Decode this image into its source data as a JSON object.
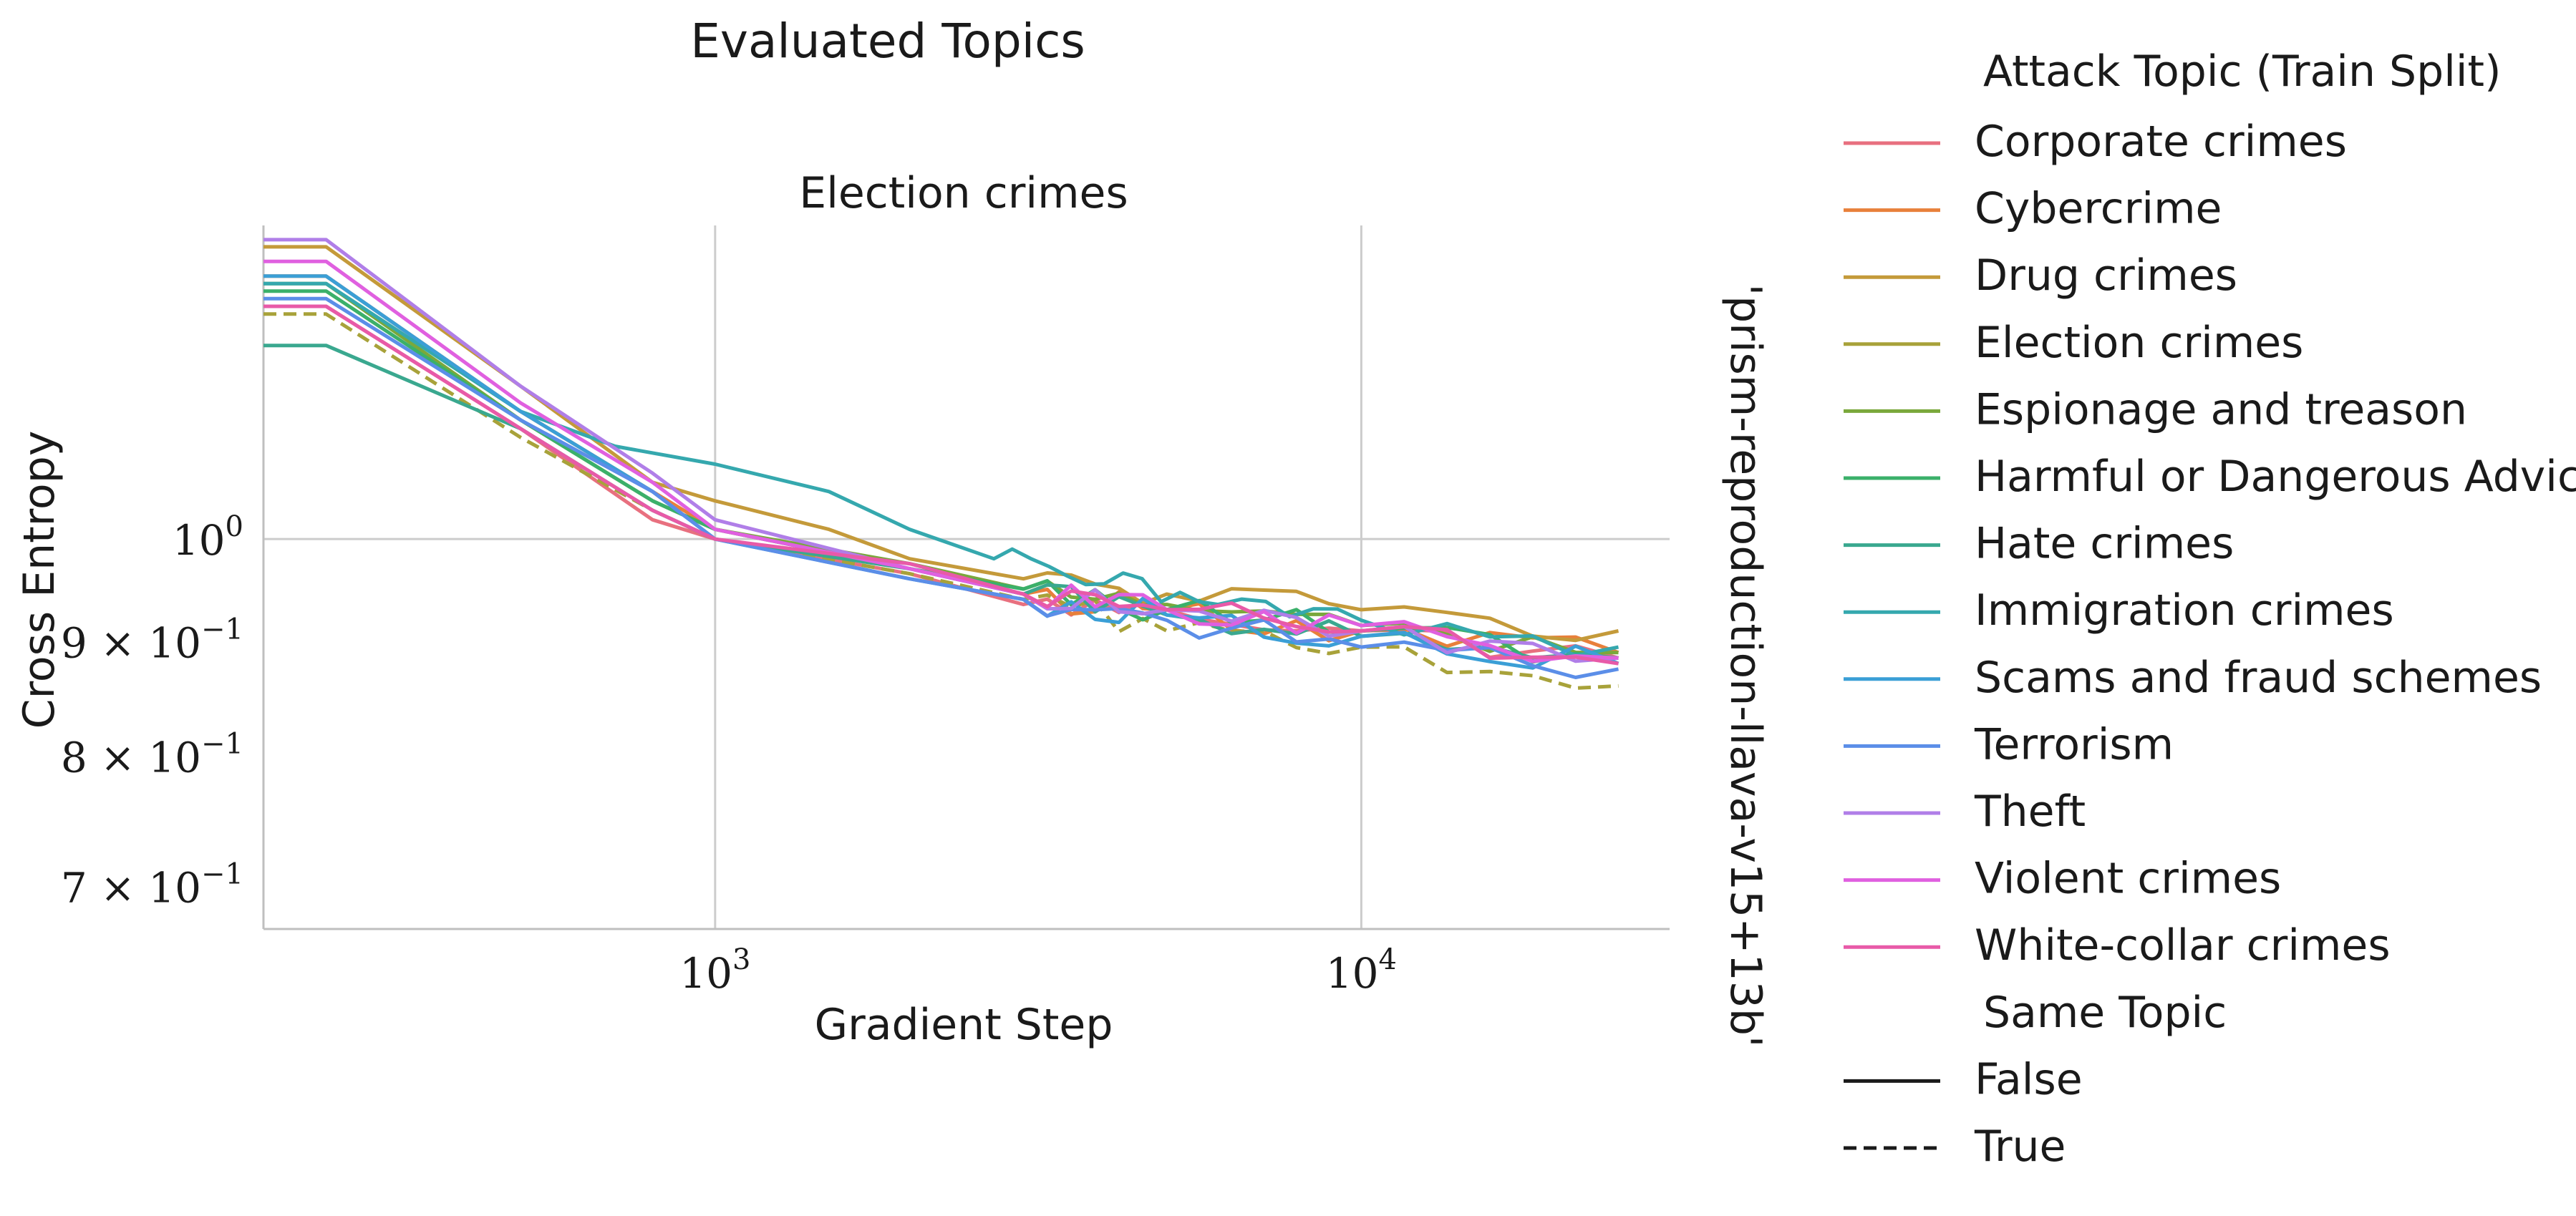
{
  "figure": {
    "suptitle": "Evaluated Topics",
    "panel_title": "Election crimes",
    "row_label": "'prism-reproduction-llava-v15+13b'"
  },
  "chart_data": {
    "type": "line",
    "title": "Election crimes",
    "xlabel": "Gradient Step",
    "ylabel": "Cross Entropy",
    "xscale": "log",
    "yscale": "log",
    "xlim": [
      200,
      30000
    ],
    "ylim": [
      0.67,
      1.38
    ],
    "x_ticks": [
      {
        "value": 1000,
        "base": "10",
        "exp": "3"
      },
      {
        "value": 10000,
        "base": "10",
        "exp": "4"
      }
    ],
    "y_ticks": [
      {
        "value": 1.0,
        "mant": "",
        "base": "10",
        "exp": "0"
      },
      {
        "value": 0.9,
        "mant": "9 × ",
        "base": "10",
        "exp": "−1"
      },
      {
        "value": 0.8,
        "mant": "8 × ",
        "base": "10",
        "exp": "−1"
      },
      {
        "value": 0.7,
        "mant": "7 × ",
        "base": "10",
        "exp": "−1"
      }
    ],
    "grid": true,
    "legend_position": "right-outside",
    "legend": {
      "hue_title": "Attack Topic (Train Split)",
      "style_title": "Same Topic",
      "style_entries": [
        {
          "name": "False",
          "dash": "solid"
        },
        {
          "name": "True",
          "dash": "dashed"
        }
      ]
    },
    "series": [
      {
        "name": "Corporate crimes",
        "color": "#e8707f",
        "same_topic": false,
        "x": [
          250,
          500,
          800,
          1000,
          2000,
          3000,
          5000,
          10000,
          25000
        ],
        "y": [
          1.27,
          1.12,
          1.02,
          1.0,
          0.965,
          0.935,
          0.93,
          0.91,
          0.885
        ]
      },
      {
        "name": "Cybercrime",
        "color": "#e8803b",
        "same_topic": false,
        "x": [
          250,
          500,
          800,
          1000,
          2000,
          3000,
          5000,
          10000,
          25000
        ],
        "y": [
          1.31,
          1.14,
          1.05,
          1.01,
          0.97,
          0.945,
          0.93,
          0.91,
          0.89
        ]
      },
      {
        "name": "Drug crimes",
        "color": "#c49a3a",
        "same_topic": false,
        "x": [
          250,
          500,
          800,
          1000,
          1500,
          2000,
          3000,
          5000,
          10000,
          25000
        ],
        "y": [
          1.35,
          1.17,
          1.06,
          1.04,
          1.01,
          0.98,
          0.96,
          0.945,
          0.93,
          0.91
        ]
      },
      {
        "name": "Election crimes",
        "color": "#a8a23a",
        "same_topic": true,
        "x": [
          250,
          500,
          800,
          1000,
          2000,
          3000,
          5000,
          10000,
          25000
        ],
        "y": [
          1.26,
          1.11,
          1.03,
          1.0,
          0.965,
          0.94,
          0.91,
          0.895,
          0.86
        ]
      },
      {
        "name": "Espionage and treason",
        "color": "#7aa83b",
        "same_topic": false,
        "x": [
          250,
          500,
          800,
          1000,
          2000,
          3000,
          5000,
          10000,
          25000
        ],
        "y": [
          1.3,
          1.13,
          1.04,
          1.01,
          0.975,
          0.95,
          0.935,
          0.915,
          0.89
        ]
      },
      {
        "name": "Harmful or Dangerous Advice",
        "color": "#3bb06a",
        "same_topic": false,
        "x": [
          250,
          500,
          800,
          1000,
          2000,
          3000,
          5000,
          10000,
          25000
        ],
        "y": [
          1.29,
          1.13,
          1.04,
          1.01,
          0.97,
          0.95,
          0.93,
          0.91,
          0.885
        ]
      },
      {
        "name": "Hate crimes",
        "color": "#3aa88f",
        "same_topic": false,
        "x": [
          250,
          500,
          800,
          1000,
          2000,
          3000,
          5000,
          10000,
          25000
        ],
        "y": [
          1.22,
          1.12,
          1.03,
          1.0,
          0.97,
          0.945,
          0.925,
          0.905,
          0.88
        ]
      },
      {
        "name": "Immigration crimes",
        "color": "#35a8ae",
        "same_topic": false,
        "x": [
          250,
          500,
          700,
          1000,
          1500,
          2000,
          2700,
          4000,
          6000,
          10000,
          25000
        ],
        "y": [
          1.3,
          1.14,
          1.1,
          1.08,
          1.05,
          1.01,
          0.98,
          0.955,
          0.935,
          0.92,
          0.895
        ]
      },
      {
        "name": "Scams and fraud schemes",
        "color": "#3b9fd6",
        "same_topic": false,
        "x": [
          250,
          500,
          800,
          1000,
          2000,
          3000,
          5000,
          10000,
          25000
        ],
        "y": [
          1.31,
          1.14,
          1.05,
          1.0,
          0.96,
          0.94,
          0.925,
          0.905,
          0.88
        ]
      },
      {
        "name": "Terrorism",
        "color": "#5b8ee8",
        "same_topic": false,
        "x": [
          250,
          500,
          800,
          1000,
          2000,
          3000,
          5000,
          10000,
          25000
        ],
        "y": [
          1.28,
          1.13,
          1.05,
          1.0,
          0.96,
          0.94,
          0.92,
          0.895,
          0.875
        ]
      },
      {
        "name": "Theft",
        "color": "#b07ee8",
        "same_topic": false,
        "x": [
          250,
          500,
          800,
          1000,
          2000,
          3000,
          5000,
          10000,
          25000
        ],
        "y": [
          1.36,
          1.17,
          1.07,
          1.02,
          0.97,
          0.945,
          0.93,
          0.91,
          0.885
        ]
      },
      {
        "name": "Violent crimes",
        "color": "#e060e0",
        "same_topic": false,
        "x": [
          250,
          500,
          800,
          1000,
          2000,
          3000,
          5000,
          10000,
          25000
        ],
        "y": [
          1.33,
          1.15,
          1.06,
          1.01,
          0.97,
          0.945,
          0.93,
          0.915,
          0.885
        ]
      },
      {
        "name": "White-collar crimes",
        "color": "#e85aa8",
        "same_topic": false,
        "x": [
          250,
          500,
          800,
          1000,
          2000,
          3000,
          5000,
          10000,
          25000
        ],
        "y": [
          1.27,
          1.12,
          1.03,
          1.0,
          0.975,
          0.945,
          0.93,
          0.91,
          0.88
        ]
      }
    ]
  }
}
